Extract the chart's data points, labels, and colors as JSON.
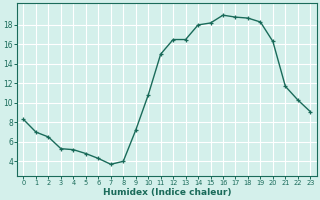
{
  "x": [
    0,
    1,
    2,
    3,
    4,
    5,
    6,
    7,
    8,
    9,
    10,
    11,
    12,
    13,
    14,
    15,
    16,
    17,
    18,
    19,
    20,
    21,
    22,
    23
  ],
  "y": [
    8.3,
    7.0,
    6.5,
    5.3,
    5.2,
    4.8,
    4.3,
    3.7,
    4.0,
    7.2,
    10.8,
    15.0,
    16.5,
    16.5,
    18.0,
    18.2,
    19.0,
    18.8,
    18.7,
    18.3,
    16.3,
    11.7,
    10.3,
    9.1
  ],
  "line_color": "#1a6b5a",
  "bg_color": "#d4f0eb",
  "grid_color": "#ffffff",
  "axis_color": "#1a6b5a",
  "xlabel": "Humidex (Indice chaleur)",
  "ylim": [
    2.5,
    20.2
  ],
  "xlim": [
    -0.5,
    23.5
  ],
  "yticks": [
    4,
    6,
    8,
    10,
    12,
    14,
    16,
    18
  ],
  "xticks": [
    0,
    1,
    2,
    3,
    4,
    5,
    6,
    7,
    8,
    9,
    10,
    11,
    12,
    13,
    14,
    15,
    16,
    17,
    18,
    19,
    20,
    21,
    22,
    23
  ],
  "markersize": 3.5,
  "linewidth": 1.0
}
